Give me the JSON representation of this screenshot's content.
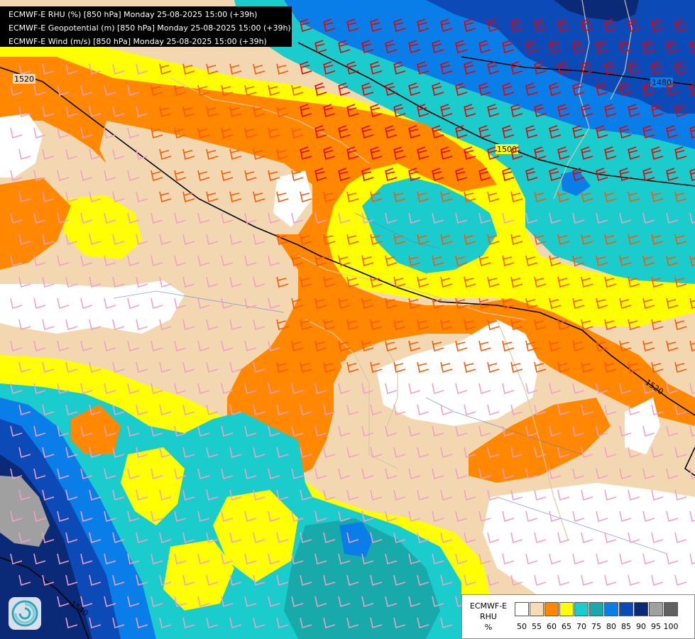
{
  "title_lines": [
    "ECMWF-E RHU (%) [850 hPa] Monday 25-08-2025 15:00 (+39h)",
    "ECMWF-E Geopotential (m) [850 hPa] Monday 25-08-2025 15:00 (+39h)",
    "ECMWF-E Wind (m/s) [850 hPa] Monday 25-08-2025 15:00 (+39h)"
  ],
  "legend": {
    "title_line1": "ECMWF-E",
    "title_line2": "RHU",
    "unit": "%",
    "ticks": [
      "50",
      "55",
      "60",
      "65",
      "70",
      "75",
      "80",
      "85",
      "90",
      "95",
      "100"
    ],
    "colors": [
      "#ffffff",
      "#f5dcb5",
      "#ff8800",
      "#ffff00",
      "#1acccc",
      "#18aaaa",
      "#0a7ee8",
      "#0c4ab8",
      "#0a2a78",
      "#a0a0a0",
      "#606060"
    ]
  },
  "geopotential_contours": [
    {
      "label": "1520"
    },
    {
      "label": "1500"
    },
    {
      "label": "1480"
    },
    {
      "label": "1520"
    },
    {
      "label": "1540"
    }
  ],
  "colors": {
    "white": "#ffffff",
    "tan": "#f3d7b0",
    "orange": "#ff8800",
    "yellow": "#ffff00",
    "cyan": "#1acccc",
    "teal": "#18aaaa",
    "blue": "#0a7ee8",
    "darkblue": "#0c4ab8",
    "navy": "#0a2a78",
    "gray": "#a0a0a0",
    "barb_pink": "#f0a0c8",
    "barb_orange": "#ff5500",
    "barb_red": "#e80000",
    "contour": "#000000"
  },
  "logo_icon": "ecmwf-swirl-icon"
}
